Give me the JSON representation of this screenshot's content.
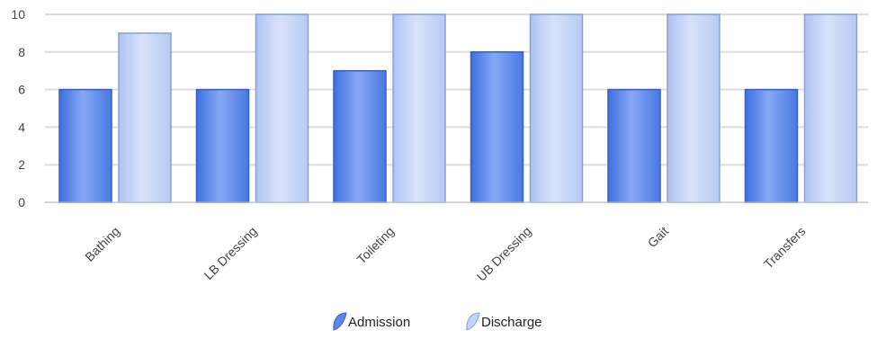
{
  "chart_data": {
    "type": "bar",
    "categories": [
      "Bathing",
      "LB Dressing",
      "Toileting",
      "UB Dressing",
      "Gait",
      "Transfers"
    ],
    "series": [
      {
        "name": "Admission",
        "values": [
          6,
          6,
          7,
          8,
          6,
          6
        ],
        "color": "#5b87e8",
        "edge": "#3a5fc2"
      },
      {
        "name": "Discharge",
        "values": [
          9,
          10,
          10,
          10,
          10,
          10
        ],
        "color": "#c2d4f7",
        "edge": "#8d9fd1"
      }
    ],
    "yticks": [
      "0",
      "2",
      "4",
      "6",
      "8",
      "10"
    ],
    "ylim": [
      0,
      10
    ],
    "grid": true,
    "legend": "bottom-center"
  }
}
